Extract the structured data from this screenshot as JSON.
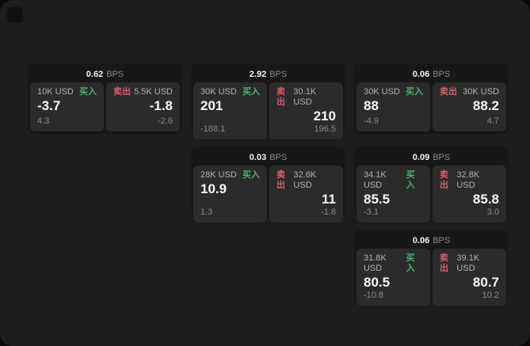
{
  "labels": {
    "buy": "买入",
    "sell": "卖出",
    "bps_unit": "BPS"
  },
  "colors": {
    "buy_green": "#4db36a",
    "sell_red": "#d6606d",
    "panel_bg": "#1d1d1d",
    "card_bg": "#171717",
    "tile_bg": "#2b2b2b"
  },
  "cards": [
    {
      "row": "1",
      "col": "1",
      "bps": "0.62",
      "buy": {
        "amount": "10K USD",
        "value": "-3.7",
        "delta": "4.3"
      },
      "sell": {
        "amount": "5.5K USD",
        "value": "-1.8",
        "delta": "-2.6"
      }
    },
    {
      "row": "1",
      "col": "2",
      "bps": "2.92",
      "buy": {
        "amount": "30K USD",
        "value": "201",
        "delta": "-188.1"
      },
      "sell": {
        "amount": "30.1K USD",
        "value": "210",
        "delta": "196.5"
      }
    },
    {
      "row": "1",
      "col": "3",
      "bps": "0.06",
      "buy": {
        "amount": "30K USD",
        "value": "88",
        "delta": "-4.9"
      },
      "sell": {
        "amount": "30K USD",
        "value": "88.2",
        "delta": "4.7"
      }
    },
    {
      "row": "2",
      "col": "2",
      "bps": "0.03",
      "buy": {
        "amount": "28K USD",
        "value": "10.9",
        "delta": "1.3"
      },
      "sell": {
        "amount": "32.6K USD",
        "value": "11",
        "delta": "-1.8"
      }
    },
    {
      "row": "2",
      "col": "3",
      "bps": "0.09",
      "buy": {
        "amount": "34.1K USD",
        "value": "85.5",
        "delta": "-3.1"
      },
      "sell": {
        "amount": "32.8K USD",
        "value": "85.8",
        "delta": "3.0"
      }
    },
    {
      "row": "3",
      "col": "3",
      "bps": "0.06",
      "buy": {
        "amount": "31.8K USD",
        "value": "80.5",
        "delta": "-10.8"
      },
      "sell": {
        "amount": "39.1K USD",
        "value": "80.7",
        "delta": "10.2"
      }
    }
  ]
}
